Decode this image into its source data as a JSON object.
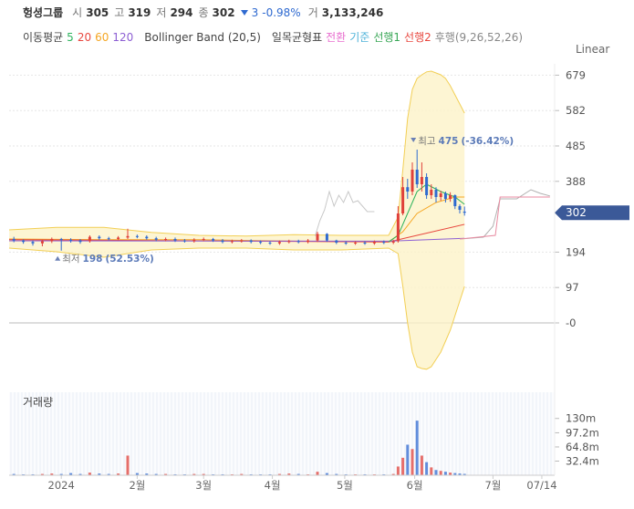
{
  "header": {
    "name": "헝셩그룹",
    "stats": [
      {
        "label": "시",
        "value": 305
      },
      {
        "label": "고",
        "value": 319
      },
      {
        "label": "저",
        "value": 294
      },
      {
        "label": "종",
        "value": 302
      }
    ],
    "change": 3,
    "change_pct": "-0.98%",
    "volume_label": "거",
    "volume": "3,133,246",
    "change_color": "#2f6ad0"
  },
  "indicators": [
    {
      "label": "이동평균",
      "items": [
        {
          "text": "5",
          "color": "#2db35d"
        },
        {
          "text": "20",
          "color": "#e8473f"
        },
        {
          "text": "60",
          "color": "#f5a623"
        },
        {
          "text": "120",
          "color": "#8d5fd3"
        }
      ]
    },
    {
      "label": "Bollinger Band (20,5)",
      "items": []
    },
    {
      "label": "일목균형표",
      "items": [
        {
          "text": "전환",
          "color": "#e86fcf"
        },
        {
          "text": "기준",
          "color": "#4fb3d9"
        },
        {
          "text": "선행1",
          "color": "#3aa757"
        },
        {
          "text": "선행2",
          "color": "#e8473f"
        },
        {
          "text": "후행(9,26,52,26)",
          "color": "#888888"
        }
      ]
    }
  ],
  "scale_label": "Linear",
  "chart_data": {
    "type": "candlestick",
    "x": [
      2,
      6,
      10,
      14,
      18,
      22,
      26,
      30,
      34,
      38,
      42,
      46,
      50,
      54,
      58,
      62,
      66,
      70,
      74,
      78,
      82,
      86,
      90,
      94,
      98,
      102,
      106,
      110,
      114,
      118,
      122,
      126,
      130,
      134,
      138,
      142,
      146,
      150,
      154,
      158,
      162,
      164,
      166,
      168,
      170,
      172,
      174,
      176,
      178,
      180,
      182,
      184,
      186,
      188,
      190,
      192
    ],
    "open": [
      230,
      226,
      222,
      218,
      224,
      230,
      228,
      226,
      224,
      236,
      232,
      230,
      234,
      238,
      236,
      232,
      228,
      230,
      226,
      224,
      228,
      230,
      226,
      222,
      224,
      226,
      222,
      220,
      218,
      222,
      224,
      222,
      226,
      244,
      226,
      220,
      218,
      220,
      218,
      222,
      220,
      224,
      300,
      372,
      360,
      420,
      380,
      400,
      350,
      365,
      345,
      355,
      340,
      350,
      320,
      305
    ],
    "high": [
      236,
      229,
      226,
      228,
      234,
      233,
      232,
      230,
      240,
      240,
      236,
      238,
      258,
      242,
      240,
      236,
      234,
      234,
      230,
      232,
      234,
      233,
      230,
      228,
      230,
      229,
      226,
      224,
      226,
      228,
      228,
      230,
      250,
      246,
      228,
      224,
      224,
      224,
      226,
      226,
      228,
      320,
      400,
      395,
      440,
      475,
      440,
      410,
      380,
      372,
      362,
      360,
      358,
      352,
      325,
      319
    ],
    "low": [
      221,
      217,
      212,
      210,
      219,
      198,
      220,
      217,
      220,
      228,
      226,
      226,
      230,
      232,
      228,
      224,
      224,
      222,
      220,
      220,
      224,
      222,
      218,
      218,
      220,
      218,
      216,
      214,
      214,
      218,
      218,
      218,
      222,
      222,
      216,
      214,
      214,
      214,
      214,
      216,
      216,
      220,
      295,
      340,
      350,
      370,
      360,
      340,
      340,
      330,
      335,
      330,
      332,
      312,
      300,
      294
    ],
    "close": [
      226,
      222,
      218,
      224,
      230,
      228,
      226,
      222,
      236,
      232,
      230,
      234,
      238,
      236,
      232,
      228,
      230,
      226,
      224,
      228,
      230,
      226,
      222,
      224,
      226,
      222,
      220,
      218,
      222,
      224,
      222,
      226,
      244,
      226,
      220,
      218,
      220,
      218,
      222,
      220,
      224,
      300,
      372,
      360,
      420,
      380,
      400,
      350,
      365,
      345,
      355,
      340,
      350,
      320,
      310,
      302
    ],
    "up_color": "#e0403a",
    "down_color": "#2f6ad0",
    "xlim": [
      0,
      230
    ],
    "xticks": [
      {
        "value": 22,
        "label": "2024"
      },
      {
        "value": 54,
        "label": "2월"
      },
      {
        "value": 82,
        "label": "3월"
      },
      {
        "value": 111,
        "label": "4월"
      },
      {
        "value": 141.5,
        "label": "5월"
      },
      {
        "value": 171,
        "label": "6월"
      },
      {
        "value": 204,
        "label": "7월"
      },
      {
        "value": 224.6,
        "label": "07/14"
      }
    ],
    "ylim": [
      -140,
      710
    ],
    "yticks": [
      679,
      582,
      485,
      388,
      194,
      97,
      {
        "value": 0,
        "label": "-0"
      }
    ],
    "current": 302,
    "current_color": "#3b5998",
    "bollinger": {
      "color": "#f2cf55",
      "fill": "#fdf3c8",
      "x": [
        0,
        20,
        40,
        60,
        80,
        100,
        120,
        140,
        160,
        164,
        166,
        168,
        170,
        172,
        174,
        176,
        178,
        180,
        182,
        184,
        186,
        188,
        190,
        192
      ],
      "upper": [
        255,
        262,
        262,
        248,
        240,
        238,
        242,
        240,
        240,
        290,
        420,
        560,
        640,
        670,
        680,
        688,
        690,
        685,
        680,
        670,
        650,
        625,
        600,
        575
      ],
      "lower": [
        205,
        195,
        180,
        200,
        205,
        205,
        200,
        200,
        205,
        190,
        100,
        0,
        -80,
        -120,
        -125,
        -127,
        -120,
        -100,
        -80,
        -50,
        -20,
        20,
        60,
        100
      ]
    },
    "lines": [
      {
        "color": "#f5a623",
        "x": [
          0,
          40,
          80,
          120,
          160,
          166,
          172,
          180,
          188,
          192
        ],
        "values": [
          230,
          228,
          228,
          224,
          222,
          250,
          300,
          330,
          345,
          345
        ]
      },
      {
        "color": "#e8473f",
        "x": [
          0,
          160,
          172,
          192
        ],
        "values": [
          228,
          222,
          240,
          270
        ]
      },
      {
        "color": "#8d5fd3",
        "x": [
          0,
          160,
          192
        ],
        "values": [
          225,
          224,
          232
        ]
      },
      {
        "color": "#2db35d",
        "x": [
          160,
          164,
          168,
          172,
          176,
          182,
          188,
          192
        ],
        "values": [
          222,
          240,
          300,
          360,
          380,
          360,
          345,
          325
        ]
      },
      {
        "color": "#c8c8c8",
        "x": [
          129,
          131,
          133,
          135,
          137,
          139,
          141,
          143,
          145,
          147,
          149,
          151,
          154
        ],
        "values": [
          238,
          280,
          310,
          360,
          320,
          350,
          330,
          360,
          330,
          335,
          320,
          305,
          305
        ]
      },
      {
        "color": "#b0b0b0",
        "x": [
          190,
          200,
          204,
          207,
          214,
          220,
          224,
          228
        ],
        "values": [
          230,
          235,
          265,
          340,
          340,
          365,
          355,
          348
        ]
      },
      {
        "color": "#e88aa0",
        "x": [
          190,
          205,
          207,
          214,
          228
        ],
        "values": [
          230,
          240,
          345,
          345,
          345
        ]
      }
    ],
    "annotations": [
      {
        "kind": "high",
        "label": "최고",
        "value": 475,
        "change": "(-36.42%)"
      },
      {
        "kind": "low",
        "label": "최저",
        "value": 198,
        "change": "(52.53%)"
      }
    ],
    "volume": {
      "title": "거래량",
      "values": [
        3,
        2,
        2,
        3,
        4,
        3,
        5,
        3,
        6,
        4,
        3,
        4,
        45,
        5,
        4,
        3,
        3,
        2,
        2,
        3,
        3,
        2,
        2,
        2,
        3,
        2,
        2,
        2,
        3,
        4,
        3,
        2,
        8,
        5,
        3,
        2,
        2,
        2,
        2,
        2,
        3,
        20,
        40,
        70,
        60,
        125,
        45,
        30,
        18,
        12,
        10,
        8,
        6,
        5,
        4,
        3.1
      ],
      "ylim": [
        0,
        190
      ],
      "yticks": [
        {
          "value": 130,
          "label": "130m"
        },
        {
          "value": 97.2,
          "label": "97.2m"
        },
        {
          "value": 64.8,
          "label": "64.8m"
        },
        {
          "value": 32.4,
          "label": "32.4m"
        }
      ]
    }
  }
}
